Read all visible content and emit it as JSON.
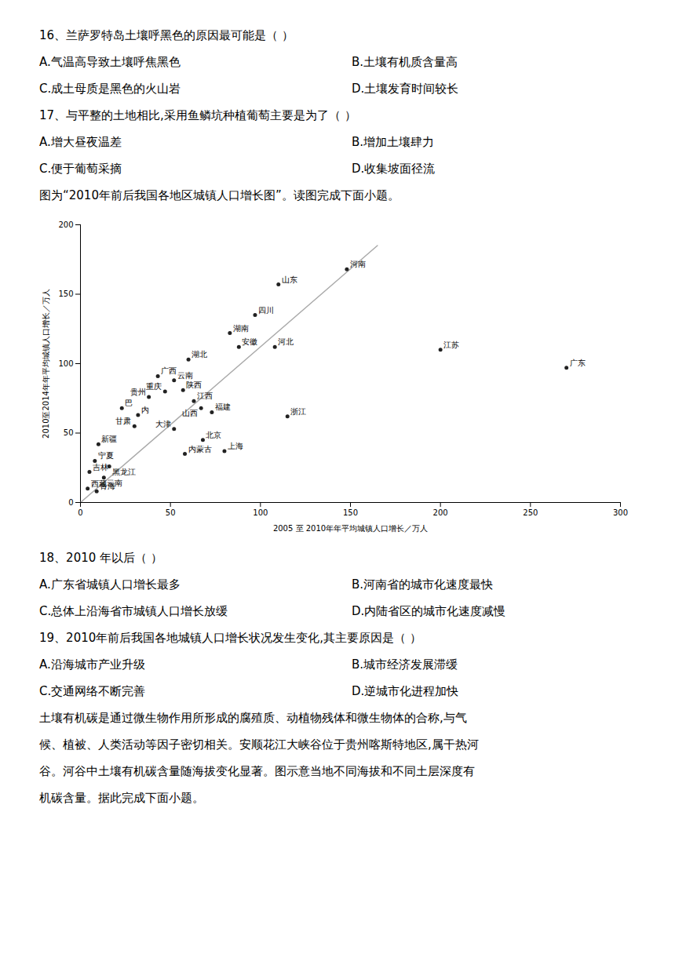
{
  "chart_data": {
    "type": "scatter",
    "title": "图为“2010年前后我国各地区城镇人口增长图”。读图完成下面小题。",
    "xlabel": "2005 至 2010年年平均城镇人口增长／万人",
    "ylabel": "2010至2014年年平均城镇人口增长／万人",
    "xlim": [
      0,
      300
    ],
    "ylim": [
      0,
      200
    ],
    "xticks": [
      0,
      50,
      100,
      150,
      200,
      250,
      300
    ],
    "yticks": [
      0,
      50,
      100,
      150,
      200
    ],
    "grid": false,
    "color": "#222222",
    "x": [
      148,
      110,
      97,
      83,
      88,
      108,
      60,
      200,
      270,
      43,
      52,
      57,
      47,
      38,
      63,
      67,
      73,
      115,
      23,
      32,
      52,
      30,
      68,
      10,
      58,
      80,
      8,
      16,
      5,
      13,
      4,
      9
    ],
    "y": [
      168,
      157,
      135,
      122,
      112,
      112,
      103,
      110,
      97,
      91,
      88,
      81,
      80,
      76,
      73,
      68,
      65,
      62,
      68,
      63,
      53,
      55,
      45,
      42,
      35,
      37,
      30,
      26,
      22,
      18,
      10,
      8
    ],
    "labels": [
      "河南",
      "山东",
      "四川",
      "湖南",
      "安徽",
      "河北",
      "湖北",
      "江苏",
      "广东",
      "广西",
      "云南",
      "陕西",
      "重庆",
      "贵州",
      "江西",
      "山西",
      "福建",
      "浙江",
      "巴",
      "内",
      "大津",
      "甘肃",
      "北京",
      "新疆",
      "内蒙古",
      "上海",
      "宁夏",
      "黑龙江",
      "吉林",
      "云南",
      "西藏",
      "青海"
    ],
    "trend_line": {
      "x": [
        0,
        165
      ],
      "y": [
        0,
        185
      ],
      "color": "#aaaaaa"
    }
  },
  "text_above": [
    [
      "16、兰萨罗特岛土壤呼黑色的原因最可能是（  ）"
    ],
    [
      "A.气温高导致土壤呼焦黑色",
      "B.土壤有机质含量高"
    ],
    [
      "C.成土母质是黑色的火山岩",
      "D.土壤发育时间较长"
    ],
    [
      "17、与平整的土地相比,采用鱼鳞坑种植葡萄主要是为了（  ）"
    ],
    [
      "A.增大昼夜温差",
      "B.增加土壤肆力"
    ],
    [
      "C.便于葡萄采摘",
      "D.收集坡面径流"
    ]
  ],
  "text_below": [
    [
      "18、2010 年以后（  ）"
    ],
    [
      "A.广东省城镇人口增长最多",
      "B.河南省的城市化速度最快"
    ],
    [
      "C.总体上沿海省市城镇人口增长放缓",
      "D.内陆省区的城市化速度减慢"
    ],
    [
      "19、2010年前后我国各地城镇人口增长状况发生变化,其主要原因是（  ）"
    ],
    [
      "A.沿海城市产业升级",
      "B.城市经济发展滞缓"
    ],
    [
      "C.交通网络不断完善",
      "D.逆城市化进程加快"
    ],
    [
      "土壤有机碳是通过微生物作用所形成的腐殖质、动植物残体和微生物体的合称,与气"
    ],
    [
      "候、植被、人类活动等因子密切相关。安顺花江大峡谷位于贵州喀斯特地区,属干热河"
    ],
    [
      "谷。河谷中土壤有机碳含量随海拔变化显著。图示意当地不同海拔和不同土层深度有"
    ],
    [
      "机碳含量。据此完成下面小题。"
    ]
  ]
}
